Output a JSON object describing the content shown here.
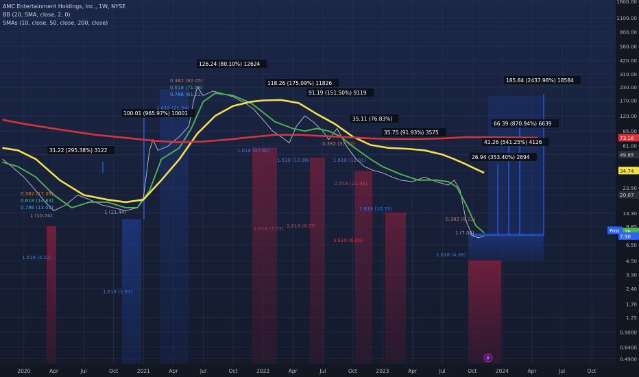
{
  "legend": {
    "title": "AMC Entertainment Holdings, Inc., 1W, NYSE",
    "bb": "BB (20, SMA, close, 2, 0)",
    "smas": "SMAs (10, close, 50, close, 200, close)"
  },
  "chart_data": {
    "type": "line",
    "scale": "log",
    "ylim": [
      0.43,
      1650
    ],
    "y_ticks": [
      "1600.00",
      "1100.00",
      "800.00",
      "580.00",
      "420.00",
      "310.00",
      "230.00",
      "170.00",
      "120.00",
      "85.00",
      "61.00",
      "49.85",
      "34.74",
      "23.50",
      "20.07",
      "13.30",
      "9.85",
      "6.50",
      "4.50",
      "3.30",
      "2.40",
      "1.70",
      "1.25",
      "0.9000",
      "0.6400",
      "0.4900"
    ],
    "y_tick_values": [
      1600,
      1100,
      800,
      580,
      420,
      310,
      230,
      170,
      120,
      85,
      61,
      49.85,
      34.74,
      23.5,
      20.07,
      13.3,
      9.85,
      6.5,
      4.5,
      3.3,
      2.4,
      1.7,
      1.25,
      0.9,
      0.64,
      0.49
    ],
    "x_ticks": [
      "2020",
      "Apr",
      "Jul",
      "Oct",
      "2021",
      "Apr",
      "Jul",
      "Oct",
      "2022",
      "Apr",
      "Jul",
      "Oct",
      "2023",
      "Apr",
      "Jul",
      "Oct",
      "2024",
      "Apr",
      "Jul",
      "Oct"
    ],
    "x_tick_values": [
      2020.0,
      2020.25,
      2020.5,
      2020.75,
      2021.0,
      2021.25,
      2021.5,
      2021.75,
      2022.0,
      2022.25,
      2022.5,
      2022.75,
      2023.0,
      2023.25,
      2023.5,
      2023.75,
      2024.0,
      2024.25,
      2024.5,
      2024.75
    ],
    "xlim": [
      2019.8,
      2024.95
    ],
    "series": [
      {
        "key": "price",
        "color": "#c8d0dc",
        "x": [
          2019.82,
          2019.9,
          2020.0,
          2020.1,
          2020.18,
          2020.25,
          2020.35,
          2020.45,
          2020.55,
          2020.65,
          2020.75,
          2020.85,
          2020.95,
          2021.0,
          2021.05,
          2021.08,
          2021.12,
          2021.2,
          2021.3,
          2021.38,
          2021.42,
          2021.45,
          2021.5,
          2021.58,
          2021.65,
          2021.75,
          2021.85,
          2021.92,
          2022.0,
          2022.08,
          2022.15,
          2022.22,
          2022.28,
          2022.35,
          2022.42,
          2022.5,
          2022.55,
          2022.62,
          2022.7,
          2022.78,
          2022.85,
          2022.92,
          2023.0,
          2023.08,
          2023.15,
          2023.25,
          2023.35,
          2023.45,
          2023.55,
          2023.6,
          2023.65,
          2023.7,
          2023.75,
          2023.8,
          2023.85
        ],
        "y": [
          45,
          38,
          30,
          22,
          17,
          14,
          16,
          20,
          18,
          16,
          15,
          14,
          15,
          19,
          55,
          70,
          55,
          60,
          75,
          95,
          170,
          230,
          190,
          210,
          200,
          185,
          160,
          140,
          110,
          85,
          75,
          65,
          95,
          120,
          105,
          85,
          70,
          90,
          60,
          45,
          38,
          35,
          33,
          30,
          28,
          27,
          30,
          27,
          25,
          28,
          22,
          11,
          8,
          7.6,
          7.9
        ]
      },
      {
        "key": "sma10",
        "color": "#4caf50",
        "x": [
          2019.82,
          2019.95,
          2020.1,
          2020.25,
          2020.4,
          2020.55,
          2020.7,
          2020.85,
          2020.95,
          2021.05,
          2021.15,
          2021.3,
          2021.4,
          2021.5,
          2021.6,
          2021.75,
          2021.9,
          2022.0,
          2022.1,
          2022.25,
          2022.35,
          2022.45,
          2022.55,
          2022.65,
          2022.75,
          2022.9,
          2023.0,
          2023.15,
          2023.3,
          2023.45,
          2023.55,
          2023.62,
          2023.7,
          2023.78,
          2023.85
        ],
        "y": [
          42,
          38,
          30,
          20,
          15,
          17,
          17,
          15,
          15,
          22,
          45,
          58,
          90,
          165,
          200,
          190,
          160,
          130,
          105,
          90,
          85,
          90,
          85,
          75,
          60,
          45,
          38,
          32,
          28,
          28,
          27,
          24,
          16,
          10,
          8.5
        ]
      },
      {
        "key": "sma50",
        "color": "#f4e04d",
        "x": [
          2019.82,
          2019.95,
          2020.1,
          2020.3,
          2020.5,
          2020.7,
          2020.85,
          2021.0,
          2021.15,
          2021.3,
          2021.45,
          2021.6,
          2021.75,
          2021.9,
          2022.0,
          2022.15,
          2022.3,
          2022.45,
          2022.6,
          2022.75,
          2022.9,
          2023.05,
          2023.2,
          2023.35,
          2023.5,
          2023.6,
          2023.7,
          2023.78,
          2023.85
        ],
        "y": [
          58,
          55,
          45,
          28,
          20,
          18,
          17,
          18,
          28,
          45,
          80,
          120,
          150,
          165,
          170,
          172,
          160,
          125,
          100,
          75,
          62,
          58,
          57,
          55,
          50,
          45,
          40,
          36,
          33
        ]
      },
      {
        "key": "sma200",
        "color": "#d7343a",
        "x": [
          2019.82,
          2020.0,
          2020.3,
          2020.6,
          2020.9,
          2021.1,
          2021.3,
          2021.5,
          2021.7,
          2021.9,
          2022.1,
          2022.3,
          2022.5,
          2022.7,
          2022.9,
          2023.1,
          2023.3,
          2023.5,
          2023.7,
          2023.85,
          2024.3
        ],
        "y": [
          110,
          100,
          88,
          78,
          72,
          68,
          66,
          67,
          70,
          74,
          78,
          78,
          76,
          74,
          72,
          71,
          71,
          72,
          74,
          74,
          73.16
        ]
      }
    ],
    "annotations": [
      "31.22 (295.38%) 3122",
      "100.01 (965.97%) 10001",
      "126.24 (80.10%) 12624",
      "118.26 (175.09%) 11826",
      "91.19 (151.50%) 9119",
      "35.11 (76.83%)",
      "35.75 (91.93%) 3575",
      "185.84 (2437.98%) 18584",
      "66.39 (870.94%) 6639",
      "41.26 (541.25%) 4126",
      "26.94 (353.40%) 2694"
    ],
    "fib_labels": [
      "0.382 (17.36)",
      "0.618 (14.83)",
      "0.786 (13.03)",
      "1 (10.74)",
      "1.618 (4.12)",
      "1 (11.44)",
      "1.618 (1.91)",
      "0.382 (92.05)",
      "0.618 (71.58)",
      "0.786 (61.22)",
      "1.618 (21.54)",
      "1.618 (47.84)",
      "2.618 (7.73)",
      "2.618 (8.35)",
      "1.618 (17.86)",
      "0.382 (37.52)",
      "1.618 (12.91)",
      "2.618 (21.96)",
      "1.618 (12.33)",
      "3.618 (6.00)",
      "0.382 (8.22)",
      "1 (7.06)",
      "1.618 (4.36)"
    ],
    "price_badges": [
      {
        "value": "73.16",
        "color": "#d7343a",
        "text_color": "#ffffff"
      },
      {
        "value": "49.85",
        "color": "#2a2e39",
        "text_color": "#d1d4dc"
      },
      {
        "value": "34.74",
        "color": "#f4e04d",
        "text_color": "#131722"
      },
      {
        "value": "20.07",
        "color": "#2a2e39",
        "text_color": "#d1d4dc"
      },
      {
        "value": "8.76",
        "color": "#4caf50",
        "text_color": "#ffffff"
      },
      {
        "value": "7.90",
        "color": "#2962ff",
        "text_color": "#ffffff"
      }
    ],
    "post_label": "Post",
    "grid": true
  }
}
